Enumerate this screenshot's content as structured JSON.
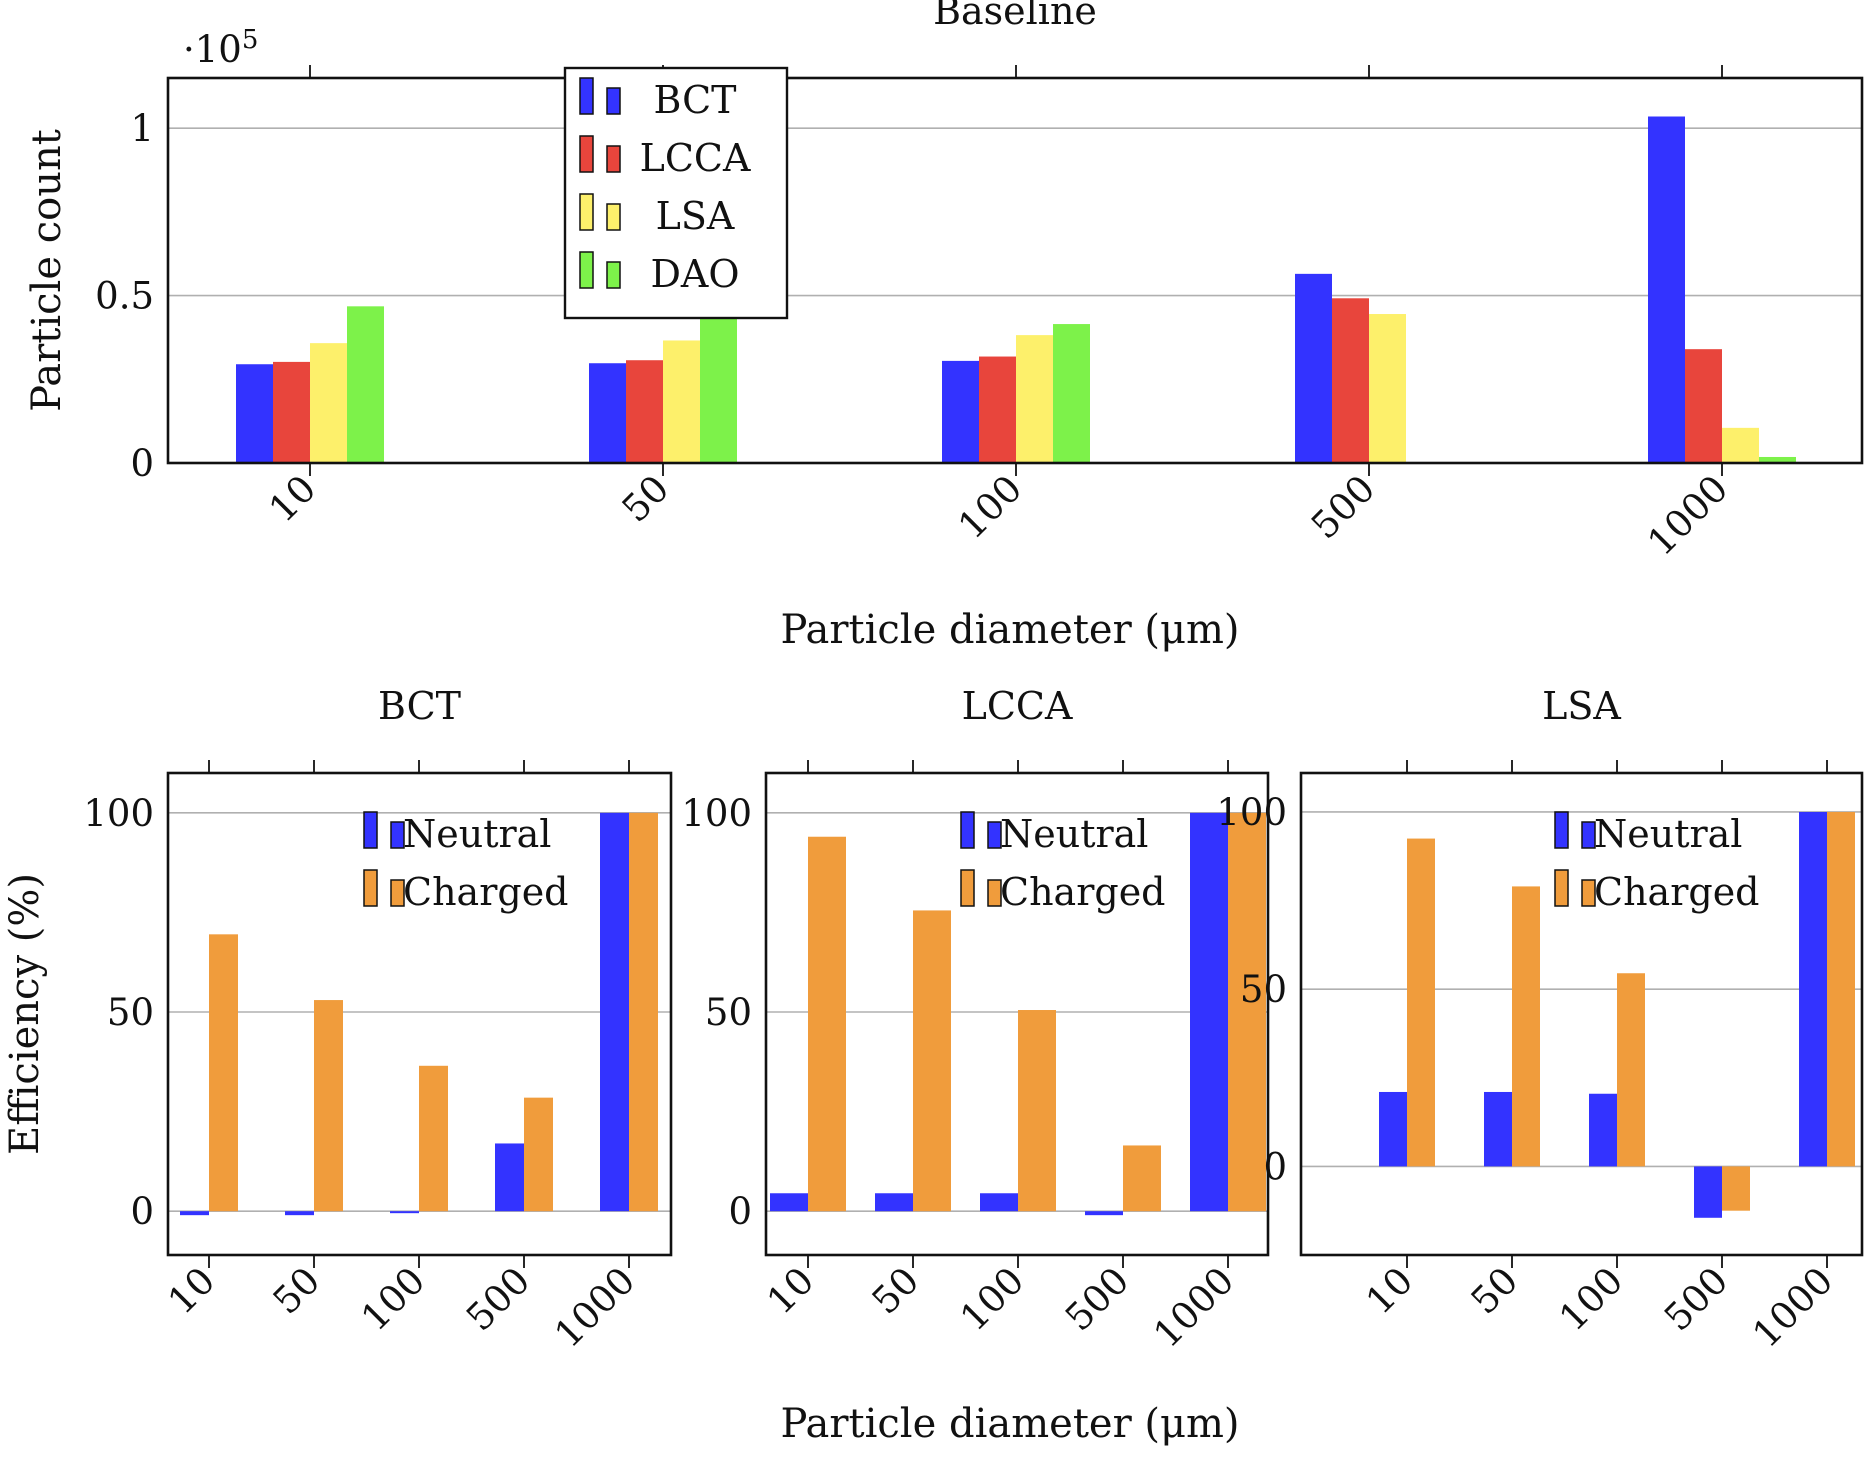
{
  "figure": {
    "xlabel_shared": "Particle diameter (μm)"
  },
  "chart_data": [
    {
      "id": "baseline",
      "type": "bar",
      "title": "Baseline",
      "xlabel": "Particle diameter (μm)",
      "ylabel": "Particle count",
      "y_multiplier_label": "·10",
      "y_multiplier_exponent": "5",
      "categories": [
        "10",
        "50",
        "100",
        "500",
        "1000"
      ],
      "ylim": [
        0,
        1.15
      ],
      "yticks": [
        0,
        0.5,
        1
      ],
      "ytick_labels": [
        "0",
        "0.5",
        "1"
      ],
      "grid": true,
      "legend_position": "top-left",
      "series": [
        {
          "name": "BCT",
          "color": "#3333ff",
          "values": [
            0.295,
            0.298,
            0.305,
            0.565,
            1.035
          ]
        },
        {
          "name": "LCCA",
          "color": "#e8453c",
          "values": [
            0.302,
            0.307,
            0.318,
            0.492,
            0.34
          ]
        },
        {
          "name": "LSA",
          "color": "#fdf06b",
          "values": [
            0.358,
            0.366,
            0.382,
            0.445,
            0.105
          ]
        },
        {
          "name": "DAO",
          "color": "#7df24a",
          "values": [
            0.468,
            0.44,
            0.415,
            0.002,
            0.018
          ]
        }
      ]
    },
    {
      "id": "bct",
      "type": "bar",
      "title": "BCT",
      "xlabel": "",
      "ylabel": "Efficiency (%)",
      "categories": [
        "10",
        "50",
        "100",
        "500",
        "1000"
      ],
      "ylim": [
        -11,
        110
      ],
      "yticks": [
        0,
        50,
        100
      ],
      "ytick_labels": [
        "0",
        "50",
        "100"
      ],
      "grid": true,
      "legend_position": "top-right",
      "series": [
        {
          "name": "Neutral",
          "color": "#3333ff",
          "values": [
            -1,
            -1,
            -0.5,
            17,
            100
          ]
        },
        {
          "name": "Charged",
          "color": "#f09c3c",
          "values": [
            69.5,
            53,
            36.5,
            28.5,
            100
          ]
        }
      ]
    },
    {
      "id": "lcca",
      "type": "bar",
      "title": "LCCA",
      "xlabel": "",
      "ylabel": "",
      "categories": [
        "10",
        "50",
        "100",
        "500",
        "1000"
      ],
      "ylim": [
        -11,
        110
      ],
      "yticks": [
        0,
        50,
        100
      ],
      "ytick_labels": [
        "0",
        "50",
        "100"
      ],
      "grid": true,
      "legend_position": "top-right",
      "series": [
        {
          "name": "Neutral",
          "color": "#3333ff",
          "values": [
            4.5,
            4.5,
            4.5,
            -1,
            100
          ]
        },
        {
          "name": "Charged",
          "color": "#f09c3c",
          "values": [
            94,
            75.5,
            50.5,
            16.5,
            100
          ]
        }
      ]
    },
    {
      "id": "lsa",
      "type": "bar",
      "title": "LSA",
      "xlabel": "",
      "ylabel": "",
      "categories": [
        "10",
        "50",
        "100",
        "500",
        "1000"
      ],
      "ylim": [
        -25,
        111
      ],
      "yticks": [
        0,
        50,
        100
      ],
      "ytick_labels": [
        "0",
        "50",
        "100"
      ],
      "grid": true,
      "legend_position": "top-right",
      "series": [
        {
          "name": "Neutral",
          "color": "#3333ff",
          "values": [
            21,
            21,
            20.5,
            -14.5,
            100
          ]
        },
        {
          "name": "Charged",
          "color": "#f09c3c",
          "values": [
            92.5,
            79,
            54.5,
            -12.5,
            100
          ]
        }
      ]
    }
  ]
}
